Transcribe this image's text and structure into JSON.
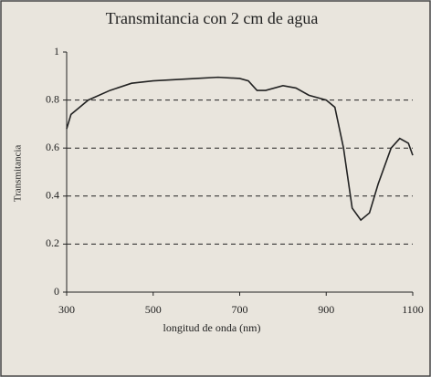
{
  "chart_data": {
    "type": "line",
    "title": "Transmitancia con 2 cm de agua",
    "x_label": "longitud de onda (nm)",
    "y_label": "Transmitancia",
    "x": [
      300,
      310,
      330,
      350,
      400,
      450,
      500,
      600,
      650,
      700,
      720,
      740,
      760,
      800,
      830,
      860,
      900,
      920,
      940,
      960,
      980,
      1000,
      1020,
      1050,
      1070,
      1090,
      1100
    ],
    "series": [
      {
        "name": "Transmitancia",
        "color": "#222222",
        "values": [
          0.68,
          0.74,
          0.77,
          0.8,
          0.84,
          0.87,
          0.88,
          0.89,
          0.895,
          0.89,
          0.88,
          0.84,
          0.84,
          0.86,
          0.85,
          0.82,
          0.8,
          0.77,
          0.6,
          0.35,
          0.3,
          0.33,
          0.45,
          0.6,
          0.64,
          0.62,
          0.57
        ]
      }
    ],
    "xlim": [
      300,
      1100
    ],
    "xticks": [
      300,
      500,
      700,
      900,
      1100
    ],
    "ylim": [
      0,
      1
    ],
    "yticks": [
      0,
      0.2,
      0.4,
      0.6,
      0.8,
      1
    ],
    "grid": true
  }
}
